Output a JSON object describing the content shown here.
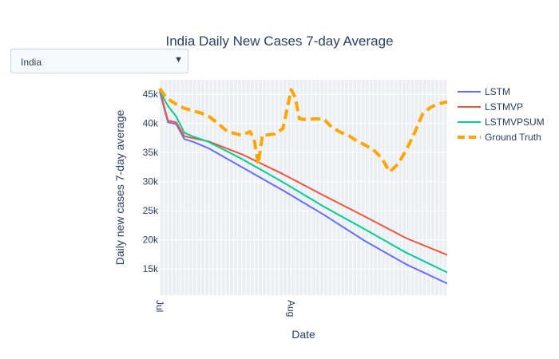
{
  "dropdown": {
    "selected": "India"
  },
  "chart_data": {
    "type": "line",
    "title": "India Daily New Cases 7-day Average",
    "xlabel": "Date",
    "ylabel": "Daily new cases 7-day average",
    "ylim": [
      10500,
      47500
    ],
    "yticks": [
      15000,
      20000,
      25000,
      30000,
      35000,
      40000,
      45000
    ],
    "ytick_labels": [
      "15k",
      "20k",
      "25k",
      "30k",
      "35k",
      "40k",
      "45k"
    ],
    "grid": true,
    "legend_position": "right",
    "x_tick_labels": [
      "Jul",
      "Aug"
    ],
    "series": [
      {
        "name": "LSTM",
        "color": "#636efa",
        "dash": "solid",
        "x": [
          0,
          2,
          4,
          6,
          8,
          12,
          20,
          30,
          40,
          50,
          60,
          70
        ],
        "values": [
          45500,
          40200,
          39900,
          37300,
          36900,
          35700,
          32500,
          28500,
          24300,
          19800,
          15800,
          12500
        ]
      },
      {
        "name": "LSTMVP",
        "color": "#ef553b",
        "dash": "solid",
        "x": [
          0,
          2,
          4,
          6,
          8,
          12,
          20,
          30,
          40,
          50,
          60,
          70
        ],
        "values": [
          45800,
          40500,
          40200,
          37800,
          37500,
          36900,
          34700,
          31300,
          27600,
          24000,
          20300,
          17400
        ]
      },
      {
        "name": "LSTMVPSUM",
        "color": "#00cc96",
        "dash": "solid",
        "x": [
          0,
          2,
          4,
          6,
          8,
          12,
          20,
          30,
          40,
          50,
          60,
          70
        ],
        "values": [
          45600,
          43000,
          41200,
          38400,
          37800,
          36800,
          33900,
          29900,
          25700,
          21800,
          17800,
          14400
        ]
      },
      {
        "name": "Ground Truth",
        "color": "#ffa500",
        "dash": "dash",
        "x": [
          0,
          1,
          2,
          4,
          6,
          8,
          10,
          12,
          14,
          16,
          18,
          20,
          22,
          23,
          24,
          25,
          26,
          28,
          30,
          32,
          33,
          34,
          35,
          36,
          38,
          40,
          42,
          44,
          46,
          48,
          50,
          52,
          54,
          56,
          58,
          60,
          62,
          64,
          66,
          68,
          70
        ],
        "values": [
          46000,
          45000,
          44200,
          43300,
          42600,
          42200,
          41800,
          41200,
          40100,
          38900,
          38300,
          38000,
          38600,
          37300,
          33000,
          38000,
          38000,
          38200,
          39100,
          45800,
          44500,
          40800,
          40700,
          40700,
          40800,
          40700,
          39300,
          38500,
          37900,
          37000,
          36300,
          35500,
          34100,
          31700,
          33000,
          35400,
          38300,
          41600,
          42800,
          43400,
          43700
        ]
      }
    ]
  }
}
